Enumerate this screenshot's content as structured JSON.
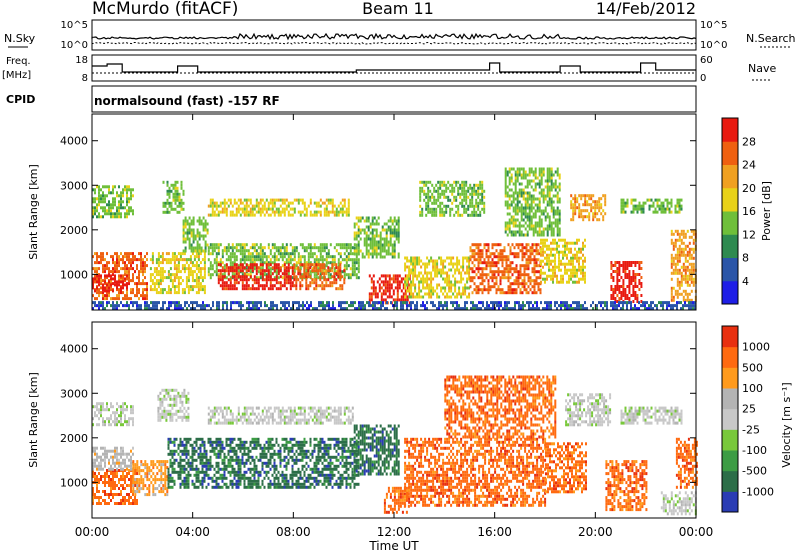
{
  "header": {
    "station": "McMurdo (fitACF)",
    "beam": "Beam 11",
    "date": "14/Feb/2012"
  },
  "summary_panel": {
    "nsky_label": "N.Sky",
    "nsky_ticks": [
      "10^5",
      "10^0"
    ],
    "nsearch_label": "N.Search",
    "nsearch_ticks": [
      "10^5",
      "10^0"
    ],
    "freq_label": "Freq.",
    "freq_unit": "[MHz]",
    "freq_ticks": [
      "18",
      "8"
    ],
    "nave_label": "Nave",
    "nave_ticks": [
      "60",
      "0"
    ],
    "cpid_label": "CPID",
    "cpid_text": "normalsound (fast) -157 RF"
  },
  "colors": {
    "power": [
      "#1e1ee6",
      "#2a55a8",
      "#2e8a50",
      "#6fbf3a",
      "#e8d218",
      "#f0a020",
      "#ef6010",
      "#e81a10"
    ],
    "velocity": [
      "#2a3cb4",
      "#2c6e48",
      "#3c9c44",
      "#78c83a",
      "#c8c8c8",
      "#b4b4b4",
      "#ff9a1c",
      "#ff6a10",
      "#e83010"
    ]
  },
  "chart_data": [
    {
      "type": "heatmap",
      "name": "power",
      "xlabel": "",
      "ylabel": "Slant Range [km]",
      "xlim": [
        0,
        24
      ],
      "ylim": [
        200,
        4600
      ],
      "yticks": [
        1000,
        2000,
        3000,
        4000
      ],
      "colorbar_label": "Power [dB]",
      "colorbar_ticks": [
        "28",
        "24",
        "20",
        "16",
        "12",
        "8",
        "4"
      ],
      "bands": [
        {
          "t": [
            0.0,
            2.2
          ],
          "r": [
            450,
            1500
          ],
          "c": 6
        },
        {
          "t": [
            0.0,
            1.4
          ],
          "r": [
            600,
            1000
          ],
          "c": 7
        },
        {
          "t": [
            0.0,
            1.6
          ],
          "r": [
            2300,
            3000
          ],
          "c": 3
        },
        {
          "t": [
            2.3,
            4.5
          ],
          "r": [
            600,
            1500
          ],
          "c": 4
        },
        {
          "t": [
            2.8,
            3.6
          ],
          "r": [
            2400,
            3100
          ],
          "c": 3
        },
        {
          "t": [
            3.6,
            4.6
          ],
          "r": [
            1500,
            2300
          ],
          "c": 3
        },
        {
          "t": [
            4.6,
            10.6
          ],
          "r": [
            900,
            1700
          ],
          "c": 3
        },
        {
          "t": [
            5.0,
            8.0
          ],
          "r": [
            700,
            1250
          ],
          "c": 7
        },
        {
          "t": [
            8.0,
            10.0
          ],
          "r": [
            700,
            1250
          ],
          "c": 6
        },
        {
          "t": [
            4.6,
            10.2
          ],
          "r": [
            2300,
            2700
          ],
          "c": 4
        },
        {
          "t": [
            10.4,
            12.2
          ],
          "r": [
            1400,
            2300
          ],
          "c": 3
        },
        {
          "t": [
            11.0,
            12.6
          ],
          "r": [
            350,
            1000
          ],
          "c": 7
        },
        {
          "t": [
            12.4,
            15.0
          ],
          "r": [
            500,
            1400
          ],
          "c": 4
        },
        {
          "t": [
            13.0,
            15.6
          ],
          "r": [
            2300,
            3100
          ],
          "c": 3
        },
        {
          "t": [
            15.0,
            17.8
          ],
          "r": [
            600,
            1700
          ],
          "c": 6
        },
        {
          "t": [
            16.4,
            18.6
          ],
          "r": [
            1900,
            3400
          ],
          "c": 3
        },
        {
          "t": [
            17.8,
            19.6
          ],
          "r": [
            800,
            1800
          ],
          "c": 4
        },
        {
          "t": [
            19.0,
            20.4
          ],
          "r": [
            2200,
            2800
          ],
          "c": 5
        },
        {
          "t": [
            20.6,
            21.8
          ],
          "r": [
            400,
            1300
          ],
          "c": 7
        },
        {
          "t": [
            21.0,
            23.4
          ],
          "r": [
            2400,
            2700
          ],
          "c": 3
        },
        {
          "t": [
            23.0,
            24.0
          ],
          "r": [
            400,
            2000
          ],
          "c": 5
        },
        {
          "t": [
            0.0,
            24.0
          ],
          "r": [
            200,
            400
          ],
          "c": 1
        }
      ]
    },
    {
      "type": "heatmap",
      "name": "velocity",
      "xlabel": "Time UT",
      "ylabel": "Slant Range [km]",
      "xlim": [
        0,
        24
      ],
      "ylim": [
        200,
        4600
      ],
      "yticks": [
        1000,
        2000,
        3000,
        4000
      ],
      "xticks": [
        "00:00",
        "04:00",
        "08:00",
        "12:00",
        "16:00",
        "20:00",
        "00:00"
      ],
      "colorbar_label": "Velocity [m s⁻¹]",
      "colorbar_ticks": [
        "1000",
        "500",
        "100",
        "25",
        "-25",
        "-100",
        "-500",
        "-1000"
      ],
      "bands": [
        {
          "t": [
            0.0,
            1.8
          ],
          "r": [
            500,
            1300
          ],
          "c": 7
        },
        {
          "t": [
            0.0,
            1.6
          ],
          "r": [
            1300,
            1800
          ],
          "c": 5
        },
        {
          "t": [
            0.0,
            1.6
          ],
          "r": [
            2300,
            2800
          ],
          "c": 4
        },
        {
          "t": [
            1.6,
            3.0
          ],
          "r": [
            700,
            1500
          ],
          "c": 6
        },
        {
          "t": [
            2.6,
            3.8
          ],
          "r": [
            2400,
            3100
          ],
          "c": 4
        },
        {
          "t": [
            3.0,
            10.6
          ],
          "r": [
            900,
            2000
          ],
          "c": 1
        },
        {
          "t": [
            4.6,
            10.4
          ],
          "r": [
            2300,
            2700
          ],
          "c": 4
        },
        {
          "t": [
            10.4,
            12.2
          ],
          "r": [
            1200,
            2300
          ],
          "c": 1
        },
        {
          "t": [
            11.6,
            12.6
          ],
          "r": [
            300,
            900
          ],
          "c": 7
        },
        {
          "t": [
            12.4,
            18.0
          ],
          "r": [
            500,
            2000
          ],
          "c": 7
        },
        {
          "t": [
            14.0,
            18.4
          ],
          "r": [
            2000,
            3400
          ],
          "c": 7
        },
        {
          "t": [
            18.0,
            19.6
          ],
          "r": [
            800,
            1900
          ],
          "c": 7
        },
        {
          "t": [
            18.8,
            20.6
          ],
          "r": [
            2300,
            3000
          ],
          "c": 4
        },
        {
          "t": [
            20.4,
            22.0
          ],
          "r": [
            400,
            1500
          ],
          "c": 7
        },
        {
          "t": [
            21.0,
            23.4
          ],
          "r": [
            2300,
            2700
          ],
          "c": 4
        },
        {
          "t": [
            22.6,
            24.0
          ],
          "r": [
            300,
            800
          ],
          "c": 4
        },
        {
          "t": [
            23.2,
            24.0
          ],
          "r": [
            900,
            2000
          ],
          "c": 7
        }
      ]
    }
  ]
}
